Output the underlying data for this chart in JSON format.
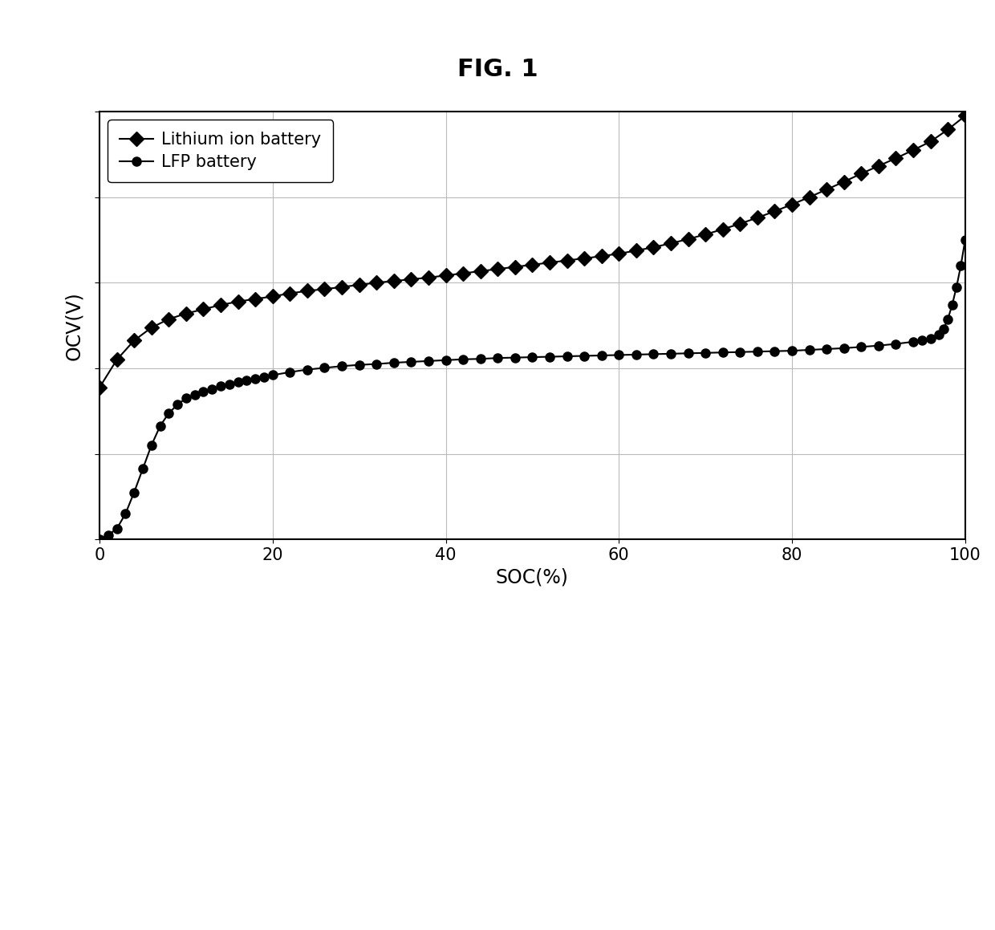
{
  "title": "FIG. 1",
  "xlabel": "SOC(%)",
  "ylabel": "OCV(V)",
  "legend": [
    "Lithium ion battery",
    "LFP battery"
  ],
  "xlim": [
    0,
    100
  ],
  "ylim": [
    0.0,
    1.0
  ],
  "xticks": [
    0,
    20,
    40,
    60,
    80,
    100
  ],
  "grid": true,
  "background_color": "#ffffff",
  "line_color": "#000000",
  "title_fontsize": 22,
  "label_fontsize": 17,
  "tick_fontsize": 15,
  "legend_fontsize": 15,
  "li_soc": [
    0,
    2,
    4,
    6,
    8,
    10,
    12,
    14,
    16,
    18,
    20,
    22,
    24,
    26,
    28,
    30,
    32,
    34,
    36,
    38,
    40,
    42,
    44,
    46,
    48,
    50,
    52,
    54,
    56,
    58,
    60,
    62,
    64,
    66,
    68,
    70,
    72,
    74,
    76,
    78,
    80,
    82,
    84,
    86,
    88,
    90,
    92,
    94,
    96,
    98,
    100
  ],
  "li_ocv": [
    0.355,
    0.42,
    0.465,
    0.495,
    0.515,
    0.528,
    0.538,
    0.548,
    0.556,
    0.562,
    0.568,
    0.575,
    0.581,
    0.585,
    0.59,
    0.595,
    0.6,
    0.604,
    0.608,
    0.612,
    0.617,
    0.622,
    0.627,
    0.632,
    0.637,
    0.642,
    0.647,
    0.652,
    0.657,
    0.662,
    0.668,
    0.675,
    0.683,
    0.692,
    0.702,
    0.713,
    0.725,
    0.738,
    0.752,
    0.767,
    0.783,
    0.8,
    0.818,
    0.836,
    0.855,
    0.873,
    0.891,
    0.91,
    0.93,
    0.958,
    0.99
  ],
  "lfp_soc": [
    0,
    1,
    2,
    3,
    4,
    5,
    6,
    7,
    8,
    9,
    10,
    11,
    12,
    13,
    14,
    15,
    16,
    17,
    18,
    19,
    20,
    22,
    24,
    26,
    28,
    30,
    32,
    34,
    36,
    38,
    40,
    42,
    44,
    46,
    48,
    50,
    52,
    54,
    56,
    58,
    60,
    62,
    64,
    66,
    68,
    70,
    72,
    74,
    76,
    78,
    80,
    82,
    84,
    86,
    88,
    90,
    92,
    94,
    95,
    96,
    97,
    97.5,
    98,
    98.5,
    99,
    99.5,
    100
  ],
  "lfp_ocv": [
    0.0,
    0.01,
    0.025,
    0.06,
    0.11,
    0.165,
    0.22,
    0.265,
    0.295,
    0.315,
    0.33,
    0.338,
    0.345,
    0.352,
    0.358,
    0.363,
    0.368,
    0.372,
    0.376,
    0.38,
    0.384,
    0.391,
    0.397,
    0.401,
    0.405,
    0.408,
    0.41,
    0.413,
    0.415,
    0.417,
    0.419,
    0.421,
    0.422,
    0.424,
    0.425,
    0.426,
    0.427,
    0.428,
    0.429,
    0.43,
    0.431,
    0.432,
    0.433,
    0.434,
    0.435,
    0.436,
    0.437,
    0.438,
    0.439,
    0.44,
    0.441,
    0.443,
    0.445,
    0.447,
    0.45,
    0.453,
    0.457,
    0.462,
    0.465,
    0.47,
    0.478,
    0.492,
    0.515,
    0.548,
    0.59,
    0.64,
    0.7
  ]
}
